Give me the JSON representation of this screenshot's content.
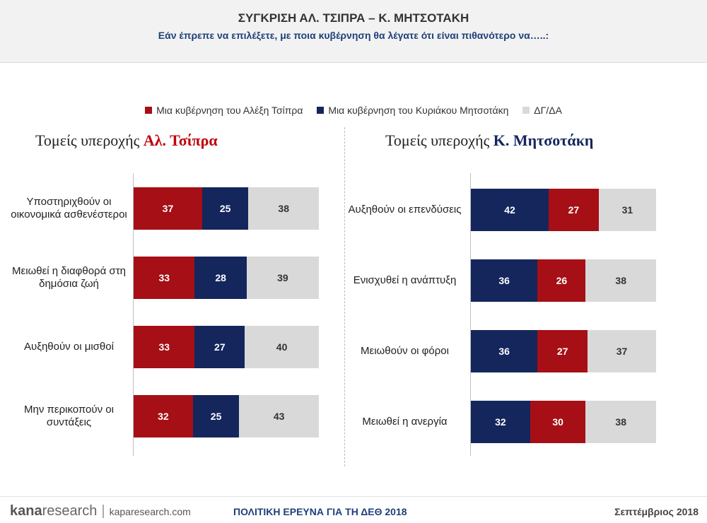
{
  "header": {
    "title": "ΣΥΓΚΡΙΣΗ ΑΛ. ΤΣΙΠΡΑ – Κ. ΜΗΤΣΟΤΑΚΗ",
    "subtitle": "Εάν έπρεπε να επιλέξετε, με ποια κυβέρνηση θα λέγατε ότι είναι πιθανότερο να…..:"
  },
  "legend": [
    {
      "label": "Μια κυβέρνηση του Αλέξη Τσίπρα",
      "color": "#a50f15"
    },
    {
      "label": "Μια κυβέρνηση του Κυριάκου Μητσοτάκη",
      "color": "#14265c"
    },
    {
      "label": "ΔΓ/ΔΑ",
      "color": "#d9d9d9"
    }
  ],
  "colors": {
    "tsipras": "#a50f15",
    "mitsotakis": "#14265c",
    "dkna": "#d9d9d9",
    "tsipras_title": "#c0000b",
    "mitsotakis_title": "#14265c"
  },
  "sections": {
    "left": {
      "title_prefix": "Τομείς υπεροχής ",
      "title_highlight": "Αλ. Τσίπρα"
    },
    "right": {
      "title_prefix": "Τομείς υπεροχής ",
      "title_highlight": "Κ. Μητσοτάκη"
    }
  },
  "chart_data": [
    {
      "type": "bar",
      "orientation": "horizontal",
      "stacked": true,
      "title": "Τομείς υπεροχής Αλ. Τσίπρα",
      "categories": [
        "Υποστηριχθούν οι οικονομικά ασθενέστεροι",
        "Μειωθεί η διαφθορά στη δημόσια ζωή",
        "Αυξηθούν οι μισθοί",
        "Μην περικοπούν οι συντάξεις"
      ],
      "series": [
        {
          "name": "Μια κυβέρνηση του Αλέξη Τσίπρα",
          "values": [
            37,
            33,
            33,
            32
          ]
        },
        {
          "name": "Μια κυβέρνηση του Κυριάκου Μητσοτάκη",
          "values": [
            25,
            28,
            27,
            25
          ]
        },
        {
          "name": "ΔΓ/ΔΑ",
          "values": [
            38,
            39,
            40,
            43
          ]
        }
      ],
      "xlim": [
        0,
        100
      ]
    },
    {
      "type": "bar",
      "orientation": "horizontal",
      "stacked": true,
      "title": "Τομείς υπεροχής Κ. Μητσοτάκη",
      "categories": [
        "Αυξηθούν οι επενδύσεις",
        "Ενισχυθεί η ανάπτυξη",
        "Μειωθούν οι φόροι",
        "Μειωθεί η ανεργία"
      ],
      "series": [
        {
          "name": "Μια κυβέρνηση του Κυριάκου Μητσοτάκη",
          "values": [
            42,
            36,
            36,
            32
          ]
        },
        {
          "name": "Μια κυβέρνηση του Αλέξη Τσίπρα",
          "values": [
            27,
            26,
            27,
            30
          ]
        },
        {
          "name": "ΔΓ/ΔΑ",
          "values": [
            31,
            38,
            37,
            38
          ]
        }
      ],
      "xlim": [
        0,
        100
      ]
    }
  ],
  "footer": {
    "brand_bold": "kana",
    "brand_rest": "research",
    "separator": "|",
    "url": "kaparesearch.com",
    "center": "ΠΟΛΙΤΙΚΗ ΕΡΕΥΝΑ ΓΙΑ ΤΗ ΔΕΘ 2018",
    "date": "Σεπτέμβριος 2018"
  }
}
